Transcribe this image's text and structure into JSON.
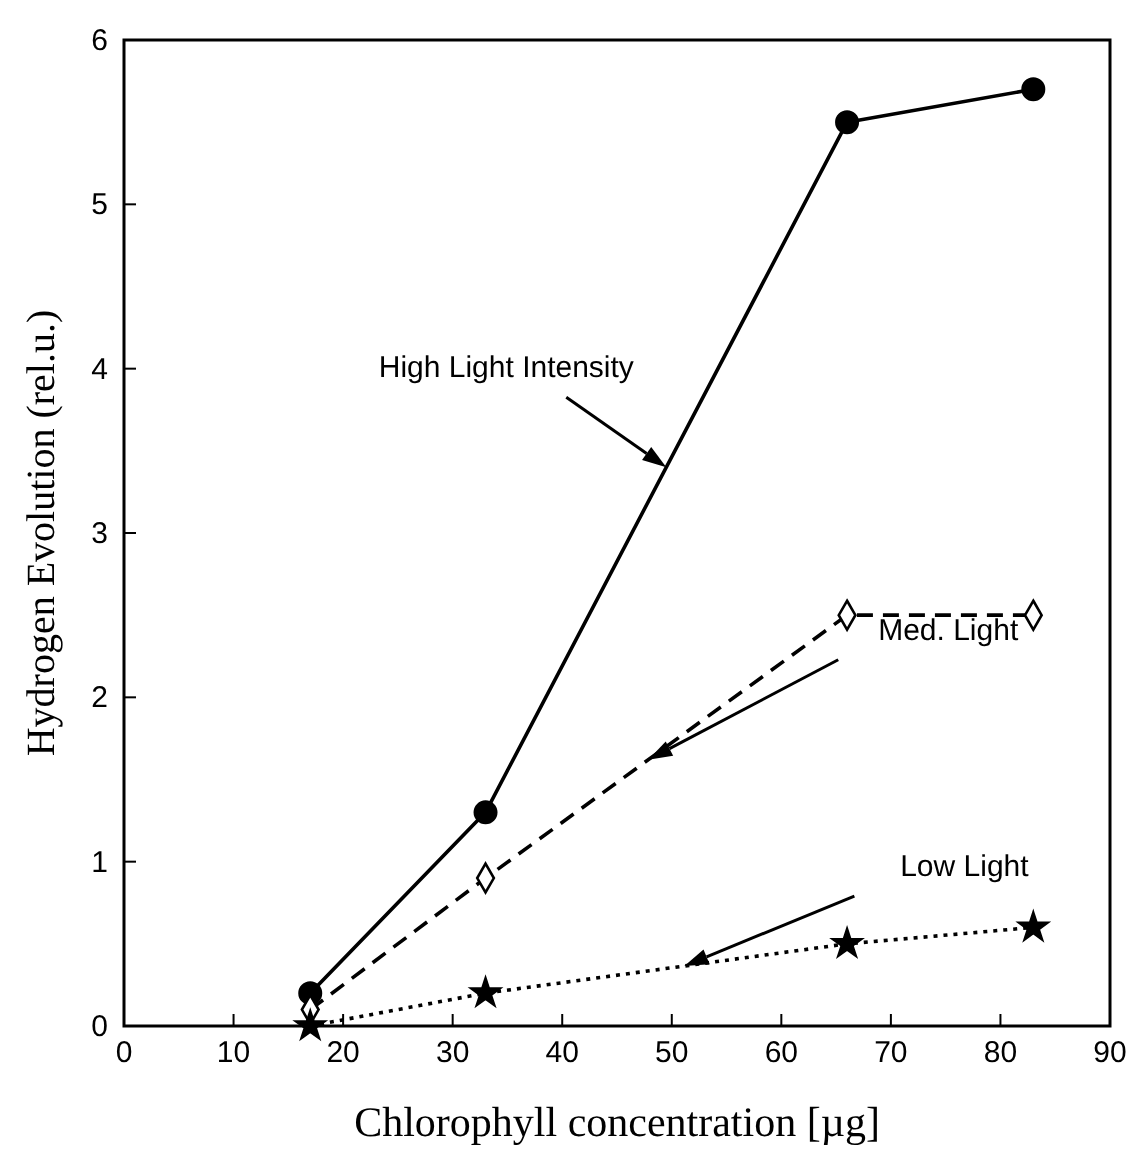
{
  "chart_data": {
    "type": "line",
    "xlabel": "Chlorophyll concentration [µg]",
    "ylabel": "Hydrogen Evolution (rel.u.)",
    "xlim": [
      0,
      90
    ],
    "ylim": [
      0,
      6
    ],
    "xticks": [
      0,
      10,
      20,
      30,
      40,
      50,
      60,
      70,
      80,
      90
    ],
    "yticks": [
      0,
      1,
      2,
      3,
      4,
      5,
      6
    ],
    "grid": false,
    "x": [
      17,
      33,
      66,
      83
    ],
    "series": [
      {
        "name": "High Light Intensity",
        "color": "#000000",
        "values": [
          0.2,
          1.3,
          5.5,
          5.7
        ],
        "marker": "circle",
        "line_style": "solid"
      },
      {
        "name": "Med. Light",
        "color": "#000000",
        "values": [
          0.1,
          0.9,
          2.5,
          2.5
        ],
        "marker": "diamond",
        "line_style": "dashed"
      },
      {
        "name": "Low Light",
        "color": "#000000",
        "values": [
          0,
          0.2,
          0.5,
          0.6
        ],
        "marker": "star",
        "line_style": "dotted"
      }
    ]
  }
}
